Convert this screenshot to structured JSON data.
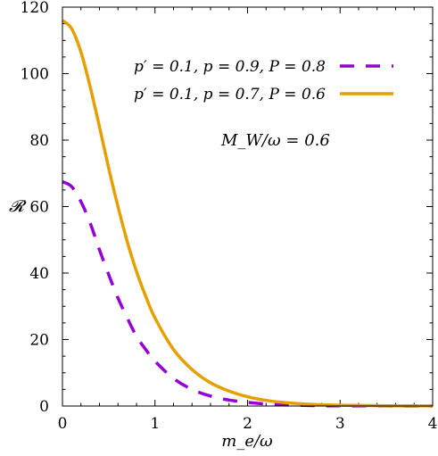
{
  "chart_data": {
    "type": "line",
    "xlabel": "m_e/ω",
    "ylabel": "𝓡",
    "xlim": [
      0,
      4
    ],
    "ylim": [
      0,
      120
    ],
    "x_ticks": [
      "0",
      "1",
      "2",
      "3",
      "4"
    ],
    "y_ticks": [
      "0",
      "20",
      "40",
      "60",
      "80",
      "100",
      "120"
    ],
    "grid": false,
    "legend_position": "top-right",
    "annotation": "M_W/ω = 0.6",
    "series": [
      {
        "name": "p′ = 0.1, p = 0.9, P = 0.8",
        "color": "#9400d3",
        "style": "dashed",
        "x": [
          0,
          0.1,
          0.2,
          0.3,
          0.4,
          0.5,
          0.6,
          0.7,
          0.8,
          0.9,
          1.0,
          1.2,
          1.4,
          1.6,
          1.8,
          2.0,
          2.2,
          2.4,
          2.6,
          2.8,
          3.0,
          3.5,
          4.0
        ],
        "y": [
          67.5,
          66.0,
          61.5,
          55.0,
          47.0,
          39.5,
          32.5,
          26.5,
          21.0,
          17.0,
          13.5,
          8.3,
          5.0,
          3.0,
          1.8,
          1.1,
          0.6,
          0.35,
          0.2,
          0.1,
          0.05,
          0.02,
          0.0
        ]
      },
      {
        "name": "p′ = 0.1, p = 0.7, P = 0.6",
        "color": "#e69f00",
        "style": "solid",
        "x": [
          0,
          0.1,
          0.2,
          0.3,
          0.4,
          0.5,
          0.6,
          0.7,
          0.8,
          0.9,
          1.0,
          1.2,
          1.4,
          1.6,
          1.8,
          2.0,
          2.2,
          2.4,
          2.6,
          2.8,
          3.0,
          3.5,
          4.0
        ],
        "y": [
          116.0,
          113.5,
          106.5,
          96.0,
          84.0,
          71.5,
          60.0,
          49.5,
          40.5,
          33.0,
          26.5,
          17.0,
          11.0,
          7.0,
          4.5,
          2.8,
          1.7,
          1.05,
          0.65,
          0.4,
          0.25,
          0.08,
          0.02
        ]
      }
    ]
  }
}
